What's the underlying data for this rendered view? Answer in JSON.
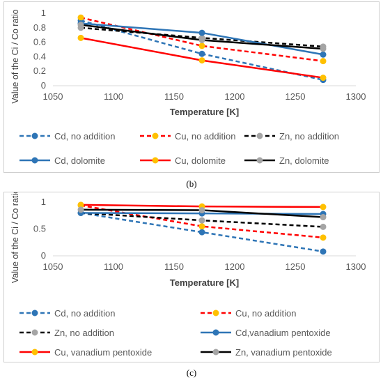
{
  "captions": {
    "b": "(b)",
    "c": "(c)"
  },
  "colors": {
    "Cd": "#2e75b6",
    "Cu": "#ff0000",
    "Zn": "#000000",
    "marker_Cd": "#2e75b6",
    "marker_Cu": "#ffc000",
    "marker_Zn": "#a5a5a5"
  },
  "chart_data": [
    {
      "type": "line",
      "panel": "b",
      "xlabel": "Temperature [K]",
      "ylabel": "Value of the Ci / Co ratio",
      "xlim": [
        1050,
        1300
      ],
      "ylim": [
        0,
        1
      ],
      "xticks": [
        1050,
        1100,
        1150,
        1200,
        1250,
        1300
      ],
      "yticks": [
        0,
        0.2,
        0.4,
        0.6,
        0.8,
        1
      ],
      "ytick_labels": [
        "0",
        "0.2",
        "0.4",
        "0.6",
        "0.8",
        "1"
      ],
      "x": [
        1073,
        1173,
        1273
      ],
      "legend_position": "bottom",
      "series": [
        {
          "name": "Cd, no addition",
          "metal": "Cd",
          "dashed": true,
          "values": [
            0.9,
            0.44,
            0.08
          ]
        },
        {
          "name": "Cu, no addition",
          "metal": "Cu",
          "dashed": true,
          "values": [
            0.94,
            0.55,
            0.34
          ]
        },
        {
          "name": "Zn, no addition",
          "metal": "Zn",
          "dashed": true,
          "values": [
            0.8,
            0.66,
            0.54
          ]
        },
        {
          "name": "Cd, dolomite",
          "metal": "Cd",
          "dashed": false,
          "values": [
            0.86,
            0.73,
            0.43
          ]
        },
        {
          "name": "Cu, dolomite",
          "metal": "Cu",
          "dashed": false,
          "values": [
            0.66,
            0.35,
            0.11
          ]
        },
        {
          "name": "Zn, dolomite",
          "metal": "Zn",
          "dashed": false,
          "values": [
            0.84,
            0.63,
            0.51
          ]
        }
      ]
    },
    {
      "type": "line",
      "panel": "c",
      "xlabel": "Temperature [K]",
      "ylabel": "Value of the Ci / Co ratio",
      "xlim": [
        1050,
        1300
      ],
      "ylim": [
        0,
        1
      ],
      "xticks": [
        1050,
        1100,
        1150,
        1200,
        1250,
        1300
      ],
      "yticks": [
        0,
        0.5,
        1
      ],
      "ytick_labels": [
        "0",
        "0.5",
        "1"
      ],
      "x": [
        1073,
        1173,
        1273
      ],
      "legend_position": "bottom",
      "series": [
        {
          "name": "Cd, no addition",
          "metal": "Cd",
          "dashed": true,
          "values": [
            0.8,
            0.44,
            0.08
          ]
        },
        {
          "name": "Cu, no addition",
          "metal": "Cu",
          "dashed": true,
          "values": [
            0.94,
            0.55,
            0.34
          ]
        },
        {
          "name": "Zn, no addition",
          "metal": "Zn",
          "dashed": true,
          "values": [
            0.8,
            0.66,
            0.54
          ]
        },
        {
          "name": "Cd,vanadium pentoxide",
          "metal": "Cd",
          "dashed": false,
          "values": [
            0.8,
            0.79,
            0.78
          ]
        },
        {
          "name": "Cu, vanadium pentoxide",
          "metal": "Cu",
          "dashed": false,
          "values": [
            0.95,
            0.92,
            0.91
          ]
        },
        {
          "name": "Zn, vanadium pentoxide",
          "metal": "Zn",
          "dashed": false,
          "values": [
            0.86,
            0.85,
            0.72
          ]
        }
      ]
    }
  ]
}
